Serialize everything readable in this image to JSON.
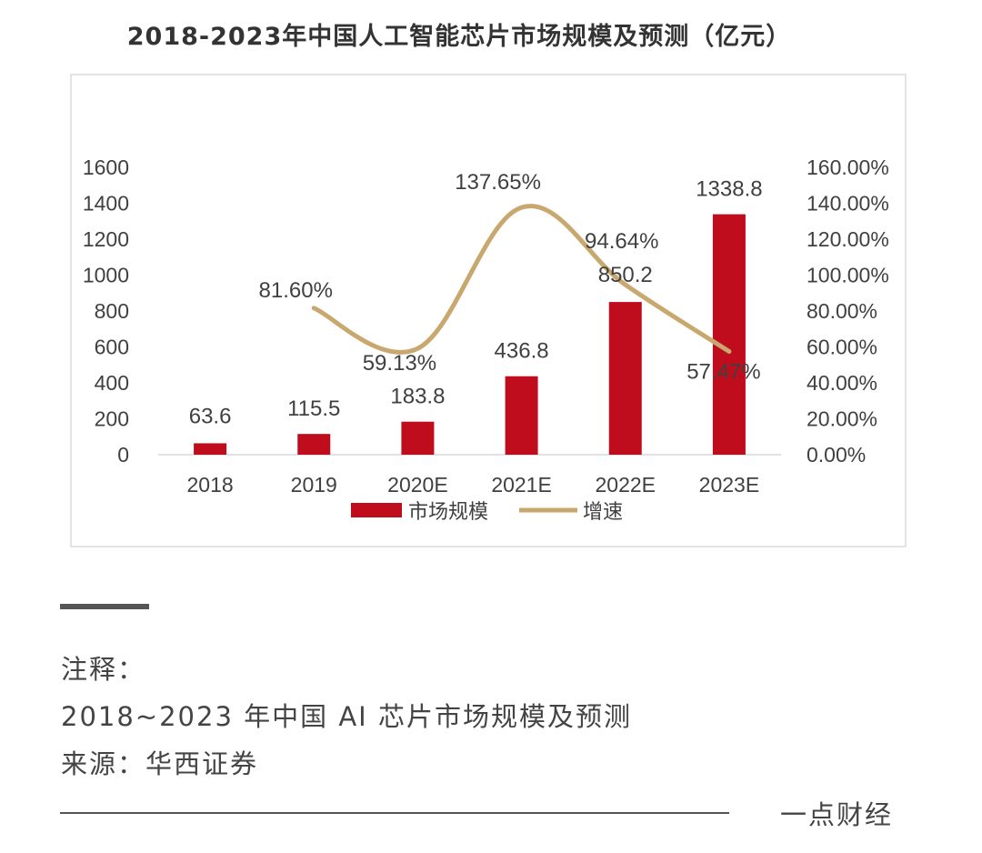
{
  "title": "2018-2023年中国人工智能芯片市场规模及预测（亿元）",
  "notes": {
    "heading": "注释：",
    "desc": "2018~2023 年中国 AI 芯片市场规模及预测",
    "source": "来源：华西证券"
  },
  "brand": "一点财经",
  "colors": {
    "bar": "#c00d1e",
    "line": "#c8a86e",
    "text": "#404040"
  },
  "chart_data": {
    "type": "bar",
    "title": "2018-2023年中国人工智能芯片市场规模及预测（亿元）",
    "categories": [
      "2018",
      "2019",
      "2020E",
      "2021E",
      "2022E",
      "2023E"
    ],
    "series": [
      {
        "name": "市场规模",
        "type": "bar",
        "axis": "left",
        "values": [
          63.6,
          115.5,
          183.8,
          436.8,
          850.2,
          1338.8
        ],
        "labels": [
          "63.6",
          "115.5",
          "183.8",
          "436.8",
          "850.2",
          "1338.8"
        ]
      },
      {
        "name": "增速",
        "type": "line",
        "axis": "right",
        "values": [
          null,
          81.6,
          59.13,
          137.65,
          94.64,
          57.47
        ],
        "labels": [
          "",
          "81.60%",
          "59.13%",
          "137.65%",
          "94.64%",
          "57.47%"
        ]
      }
    ],
    "y_left": {
      "min": 0,
      "max": 1600,
      "ticks": [
        "0",
        "200",
        "400",
        "600",
        "800",
        "1000",
        "1200",
        "1400",
        "1600"
      ]
    },
    "y_right": {
      "min": 0,
      "max": 160,
      "ticks": [
        "0.00%",
        "20.00%",
        "40.00%",
        "60.00%",
        "80.00%",
        "100.00%",
        "120.00%",
        "140.00%",
        "160.00%"
      ]
    },
    "legend": [
      "市场规模",
      "增速"
    ],
    "legend_position": "bottom",
    "grid": false
  }
}
